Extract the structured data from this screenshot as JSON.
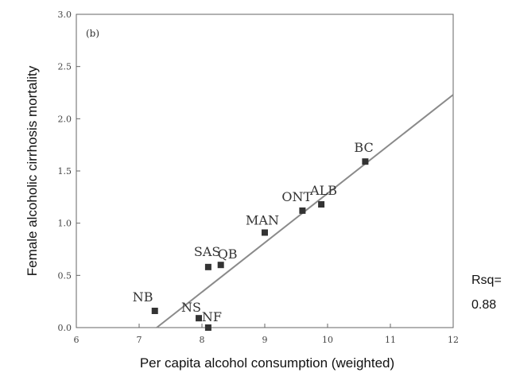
{
  "chart_data": {
    "type": "scatter",
    "panel_label": "(b)",
    "xlabel": "Per capita alcohol consumption (weighted)",
    "ylabel": "Female alcoholic cirrhosis mortality",
    "xlim": [
      6,
      12
    ],
    "ylim": [
      0,
      3.0
    ],
    "xticks": [
      "6",
      "7",
      "8",
      "9",
      "10",
      "11",
      "12"
    ],
    "yticks": [
      "0.0",
      "0.5",
      "1.0",
      "1.5",
      "2.0",
      "2.5",
      "3.0"
    ],
    "points": [
      {
        "label": "NB",
        "x": 7.25,
        "y": 0.16
      },
      {
        "label": "NS",
        "x": 7.95,
        "y": 0.09
      },
      {
        "label": "NF",
        "x": 8.1,
        "y": 0.0
      },
      {
        "label": "SAS",
        "x": 8.1,
        "y": 0.58
      },
      {
        "label": "QB",
        "x": 8.3,
        "y": 0.6
      },
      {
        "label": "MAN",
        "x": 9.0,
        "y": 0.91
      },
      {
        "label": "ONT",
        "x": 9.6,
        "y": 1.12
      },
      {
        "label": "ALB",
        "x": 9.9,
        "y": 1.18
      },
      {
        "label": "BC",
        "x": 10.6,
        "y": 1.59
      }
    ],
    "fit_line": {
      "x": [
        7.28,
        12.0
      ],
      "y": [
        0.0,
        2.23
      ]
    },
    "annotation": {
      "line1": "Rsq=",
      "line2": "0.88"
    },
    "grid": false,
    "legend": "none",
    "colors": {
      "points": "#333333",
      "line": "#8a8a8a",
      "axes": "#666666"
    }
  }
}
